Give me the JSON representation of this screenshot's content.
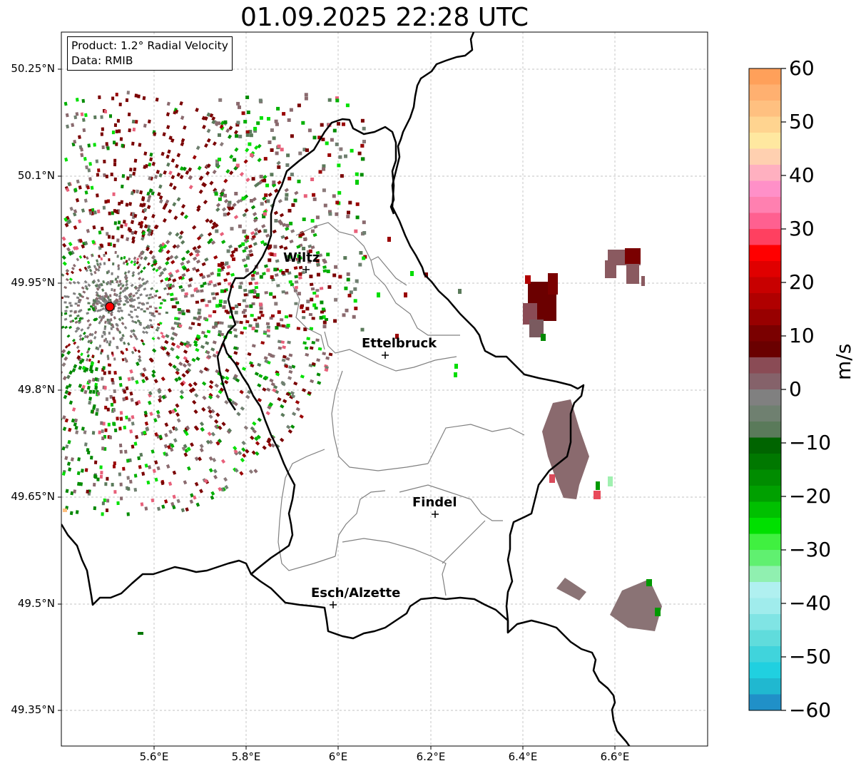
{
  "title": "01.09.2025 22:28 UTC",
  "info_box": {
    "product": "Product: 1.2° Radial Velocity",
    "data": "Data: RMIB"
  },
  "axes": {
    "lat_labels": [
      "50.25°N",
      "50.1°N",
      "49.95°N",
      "49.8°N",
      "49.65°N",
      "49.5°N",
      "49.35°N"
    ],
    "lon_labels": [
      "5.6°E",
      "5.8°E",
      "6°E",
      "6.2°E",
      "6.4°E",
      "6.6°E"
    ]
  },
  "cities": [
    {
      "name": "Wiltz"
    },
    {
      "name": "Ettelbruck"
    },
    {
      "name": "Findel"
    },
    {
      "name": "Esch/Alzette"
    }
  ],
  "colorbar": {
    "unit": "m/s",
    "ticks": [
      "60",
      "50",
      "40",
      "30",
      "20",
      "10",
      "0",
      "−10",
      "−20",
      "−30",
      "−40",
      "−50",
      "−60"
    ],
    "min": -60,
    "max": 60
  },
  "colors": {
    "border": "#000000",
    "canton": "#808080",
    "radar_site": "#ff0000"
  }
}
